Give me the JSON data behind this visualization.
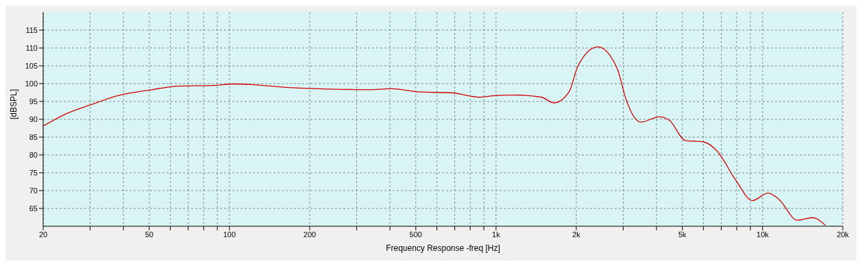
{
  "chart_data": {
    "type": "line",
    "xlabel": "Frequency Response -freq [Hz]",
    "ylabel": "[dBSPL]",
    "log": "x",
    "grid": true,
    "legend": false,
    "marker": "none",
    "line_style": "solid",
    "xlim": [
      20,
      20000
    ],
    "ylim": [
      60,
      120
    ],
    "xticks": [
      20,
      {
        "value": 30,
        "label": null
      },
      {
        "value": 40,
        "label": null
      },
      50,
      {
        "value": 60,
        "label": null
      },
      {
        "value": 70,
        "label": null
      },
      {
        "value": 80,
        "label": null
      },
      {
        "value": 90,
        "label": null
      },
      100,
      200,
      {
        "value": 300,
        "label": null
      },
      {
        "value": 400,
        "label": null
      },
      500,
      {
        "value": 600,
        "label": null
      },
      {
        "value": 700,
        "label": null
      },
      {
        "value": 800,
        "label": null
      },
      {
        "value": 900,
        "label": null
      },
      {
        "value": 1000,
        "label": "1k"
      },
      {
        "value": 2000,
        "label": "2k"
      },
      {
        "value": 3000,
        "label": null
      },
      {
        "value": 4000,
        "label": null
      },
      {
        "value": 5000,
        "label": "5k"
      },
      {
        "value": 6000,
        "label": null
      },
      {
        "value": 7000,
        "label": null
      },
      {
        "value": 8000,
        "label": null
      },
      {
        "value": 9000,
        "label": null
      },
      {
        "value": 10000,
        "label": "10k"
      },
      {
        "value": 20000,
        "label": "20k"
      }
    ],
    "yticks": [
      65,
      70,
      75,
      80,
      85,
      90,
      95,
      100,
      105,
      110,
      115
    ],
    "series": [
      {
        "color": "#d40000",
        "x": [
          20,
          25,
          30,
          38,
          51,
          64,
          87,
          104,
          123,
          166,
          236,
          337,
          404,
          509,
          686,
          870,
          979,
          1170,
          1480,
          1650,
          1880,
          2030,
          2410,
          2850,
          3090,
          3490,
          4100,
          4470,
          5150,
          5980,
          6710,
          8000,
          9150,
          10500,
          11500,
          13500,
          15400,
          17200
        ],
        "values": [
          88.1,
          91.9,
          94,
          96.6,
          98.3,
          99.3,
          99.5,
          99.9,
          99.7,
          98.9,
          98.5,
          98.3,
          98.6,
          97.7,
          97.4,
          96.2,
          96.6,
          96.8,
          96.2,
          94.6,
          97.7,
          105,
          110.3,
          104.2,
          95.1,
          89.2,
          90.7,
          89.7,
          84,
          83.7,
          81.3,
          72.5,
          67.2,
          69.3,
          67.6,
          61.7,
          62.4,
          60.3
        ]
      }
    ]
  }
}
